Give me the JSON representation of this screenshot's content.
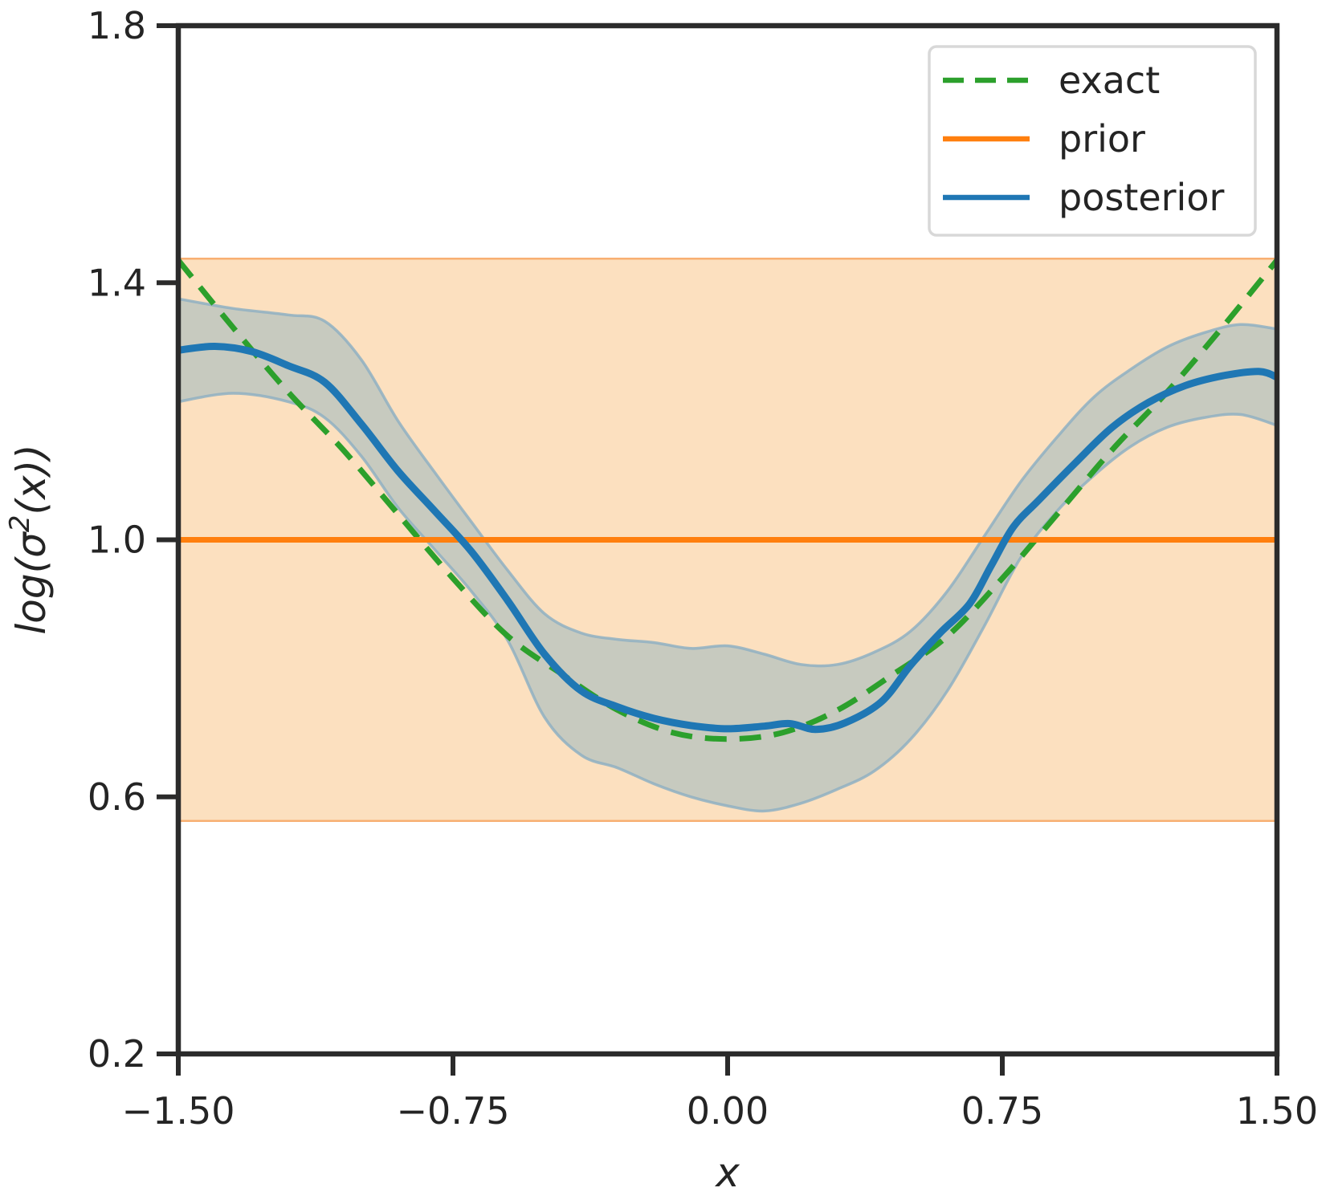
{
  "chart_data": {
    "type": "line",
    "title": "",
    "xlabel": "x",
    "ylabel": "log(σ²(x))",
    "ylabel_parts": {
      "pre": "log(σ",
      "sup": "2",
      "post": "(x))"
    },
    "xlim": [
      -1.5,
      1.5
    ],
    "ylim": [
      0.2,
      1.8
    ],
    "grid": false,
    "xticks": {
      "values": [
        -1.5,
        -0.75,
        0.0,
        0.75,
        1.5
      ],
      "labels": [
        "−1.50",
        "−0.75",
        "0.00",
        "0.75",
        "1.50"
      ]
    },
    "yticks": {
      "values": [
        1.8,
        1.4,
        1.0,
        0.6,
        0.2
      ],
      "labels": [
        "1.8",
        "1.4",
        "1.0",
        "0.6",
        "0.2"
      ]
    },
    "legend": {
      "location": "upper right",
      "entries": [
        {
          "label": "exact",
          "color": "#2ca02c",
          "style": "dashed"
        },
        {
          "label": "prior",
          "color": "#ff7f0e",
          "style": "solid"
        },
        {
          "label": "posterior",
          "color": "#1f77b4",
          "style": "solid"
        }
      ]
    },
    "bands": [
      {
        "name": "prior-uncertainty-band",
        "fill": "#fce0bf",
        "edge": "#f7a866",
        "x": [
          -1.5,
          1.5
        ],
        "upper": [
          1.4375,
          1.4375
        ],
        "lower": [
          0.5625,
          0.5625
        ]
      },
      {
        "name": "posterior-uncertainty-band",
        "fill": "#c7cabf",
        "edge": "#8fb0c2",
        "x": [
          -1.5,
          -1.35,
          -1.2,
          -1.1,
          -1.0,
          -0.9,
          -0.8,
          -0.7,
          -0.6,
          -0.5,
          -0.4,
          -0.3,
          -0.2,
          -0.1,
          0.0,
          0.1,
          0.2,
          0.3,
          0.4,
          0.5,
          0.6,
          0.7,
          0.8,
          0.9,
          1.0,
          1.1,
          1.2,
          1.3,
          1.4,
          1.5
        ],
        "upper": [
          1.375,
          1.36,
          1.35,
          1.34,
          1.28,
          1.185,
          1.105,
          1.028,
          0.952,
          0.885,
          0.855,
          0.845,
          0.84,
          0.831,
          0.835,
          0.822,
          0.806,
          0.806,
          0.825,
          0.858,
          0.92,
          1.005,
          1.09,
          1.16,
          1.222,
          1.265,
          1.3,
          1.322,
          1.335,
          1.328
        ],
        "lower": [
          1.215,
          1.228,
          1.215,
          1.19,
          1.13,
          1.05,
          0.985,
          0.92,
          0.843,
          0.724,
          0.665,
          0.645,
          0.62,
          0.6,
          0.586,
          0.578,
          0.59,
          0.612,
          0.64,
          0.69,
          0.765,
          0.865,
          0.972,
          1.045,
          1.1,
          1.145,
          1.175,
          1.19,
          1.195,
          1.178
        ]
      }
    ],
    "series": [
      {
        "name": "exact",
        "color": "#2ca02c",
        "style": "dashed",
        "width": 7,
        "x": [
          -1.5,
          -1.35,
          -1.2,
          -1.05,
          -0.9,
          -0.75,
          -0.6,
          -0.45,
          -0.3,
          -0.15,
          0.0,
          0.15,
          0.3,
          0.45,
          0.6,
          0.75,
          0.9,
          1.05,
          1.2,
          1.35,
          1.5
        ],
        "y": [
          1.435,
          1.33,
          1.23,
          1.14,
          1.04,
          0.94,
          0.85,
          0.79,
          0.735,
          0.7,
          0.69,
          0.7,
          0.735,
          0.79,
          0.85,
          0.94,
          1.04,
          1.14,
          1.23,
          1.33,
          1.435
        ]
      },
      {
        "name": "prior",
        "color": "#ff7f0e",
        "style": "solid",
        "width": 7,
        "x": [
          -1.5,
          1.5
        ],
        "y": [
          1.0,
          1.0
        ]
      },
      {
        "name": "posterior",
        "color": "#1f77b4",
        "style": "solid",
        "width": 9,
        "x": [
          -1.5,
          -1.4,
          -1.3,
          -1.2,
          -1.1,
          -1.0,
          -0.9,
          -0.8,
          -0.7,
          -0.6,
          -0.5,
          -0.4,
          -0.3,
          -0.2,
          -0.1,
          0.0,
          0.1,
          0.17,
          0.24,
          0.32,
          0.42,
          0.5,
          0.58,
          0.66,
          0.72,
          0.78,
          0.85,
          0.95,
          1.05,
          1.15,
          1.25,
          1.35,
          1.45,
          1.5
        ],
        "y": [
          1.295,
          1.301,
          1.293,
          1.271,
          1.245,
          1.18,
          1.107,
          1.045,
          0.982,
          0.905,
          0.822,
          0.765,
          0.74,
          0.722,
          0.711,
          0.706,
          0.71,
          0.714,
          0.705,
          0.715,
          0.748,
          0.805,
          0.855,
          0.9,
          0.96,
          1.02,
          1.062,
          1.12,
          1.175,
          1.214,
          1.24,
          1.255,
          1.262,
          1.253
        ]
      }
    ]
  }
}
